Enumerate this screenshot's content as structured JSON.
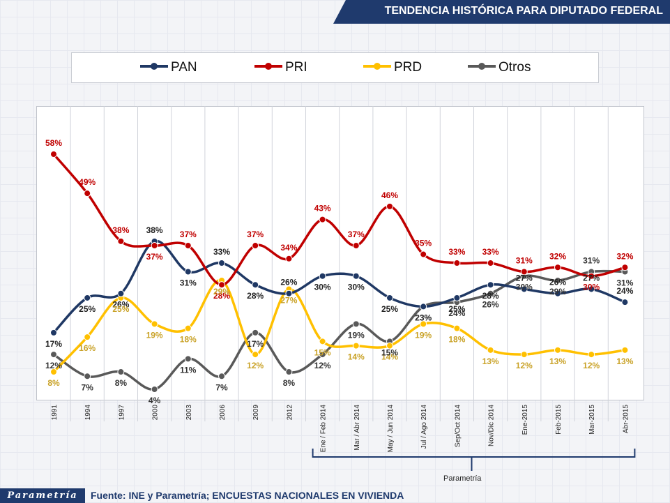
{
  "header": {
    "title": "TENDENCIA HISTÓRICA PARA DIPUTADO FEDERAL"
  },
  "footer": {
    "logo": "Parametría",
    "source": "Fuente: INE y Parametría; ENCUESTAS NACIONALES EN VIVIENDA",
    "bracket_label": "Parametría"
  },
  "chart_data": {
    "type": "line",
    "title": "TENDENCIA HISTÓRICA PARA DIPUTADO FEDERAL",
    "xlabel": "",
    "ylabel": "",
    "ylim": [
      0,
      70
    ],
    "grid": false,
    "legend": "top",
    "categories": [
      "1991",
      "1994",
      "1997",
      "2000",
      "2003",
      "2006",
      "2009",
      "2012",
      "Ene / Feb 2014",
      "Mar / Abr 2014",
      "May / Jun 2014",
      "Jul / Ago 2014",
      "Sep/Oct 2014",
      "Nov/Dic 2014",
      "Ene-2015",
      "Feb-2015",
      "Mar-2015",
      "Abr-2015"
    ],
    "series": [
      {
        "name": "PAN",
        "color": "#1f3864",
        "label_color": "#222222",
        "values": [
          17,
          25,
          26,
          38,
          31,
          33,
          28,
          26,
          30,
          30,
          25,
          23,
          25,
          28,
          27,
          26,
          27,
          24
        ]
      },
      {
        "name": "PRI",
        "color": "#c00000",
        "label_color": "#c00000",
        "values": [
          58,
          49,
          38,
          37,
          37,
          28,
          37,
          34,
          43,
          37,
          46,
          35,
          33,
          33,
          31,
          32,
          30,
          32
        ]
      },
      {
        "name": "PRD",
        "color": "#ffc000",
        "label_color": "#c9a227",
        "values": [
          8,
          16,
          25,
          19,
          18,
          29,
          12,
          27,
          15,
          14,
          14,
          19,
          18,
          13,
          12,
          13,
          12,
          13
        ]
      },
      {
        "name": "Otros",
        "color": "#595959",
        "label_color": "#333333",
        "values": [
          12,
          7,
          8,
          4,
          11,
          7,
          17,
          8,
          12,
          19,
          15,
          23,
          24,
          26,
          30,
          29,
          31,
          31
        ]
      }
    ]
  }
}
